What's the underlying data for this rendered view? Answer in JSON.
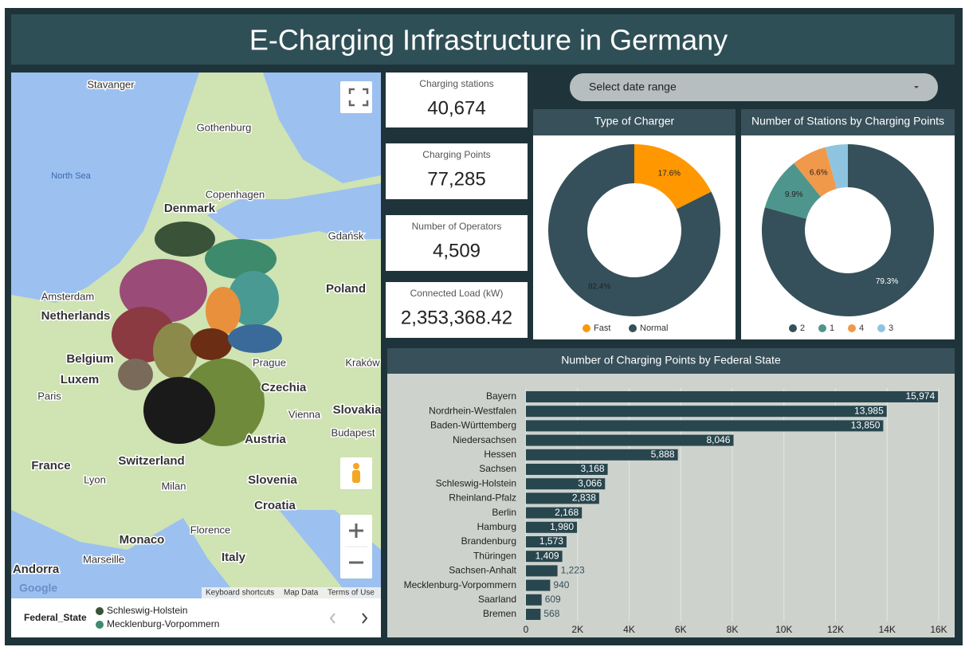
{
  "header": {
    "title": "E-Charging Infrastructure in Germany"
  },
  "kpis": [
    {
      "label": "Charging stations",
      "value": "40,674"
    },
    {
      "label": "Charging Points",
      "value": "77,285"
    },
    {
      "label": "Number of Operators",
      "value": "4,509"
    },
    {
      "label": "Connected Load (kW)",
      "value": "2,353,368.42"
    }
  ],
  "date_picker": {
    "label": "Select date range"
  },
  "map": {
    "labels": [
      "Stavanger",
      "Gothenburg",
      "North Sea",
      "Copenhagen",
      "Denmark",
      "Gdańsk",
      "Amsterdam",
      "Netherlands",
      "Poland",
      "Belgium",
      "Luxem",
      "Paris",
      "Prague",
      "Czechia",
      "Kraków",
      "Vienna",
      "Slovakia",
      "Budapest",
      "Austria",
      "France",
      "Switzerland",
      "Lyon",
      "Milan",
      "Slovenia",
      "Croatia",
      "Florence",
      "Monaco",
      "Italy",
      "Marseille",
      "Andorra"
    ],
    "attribution": [
      "Google",
      "Keyboard shortcuts",
      "Map Data",
      "Terms of Use"
    ],
    "legend_title": "Federal_State",
    "legend_items": [
      {
        "name": "Schleswig-Holstein",
        "color": "#3a5238"
      },
      {
        "name": "Mecklenburg-Vorpommern",
        "color": "#3e8a6c"
      }
    ]
  },
  "chart_data": [
    {
      "type": "donut",
      "title": "Type of Charger",
      "categories": [
        "Fast",
        "Normal"
      ],
      "values": [
        17.6,
        82.4
      ],
      "value_labels": [
        "17.6%",
        "82.4%"
      ],
      "colors": [
        "#ff9800",
        "#35505a"
      ]
    },
    {
      "type": "donut",
      "title": "Number of Stations by Charging Points",
      "categories": [
        "2",
        "1",
        "4",
        "3"
      ],
      "values": [
        79.3,
        9.9,
        6.6,
        4.2
      ],
      "value_labels": [
        "79.3%",
        "9.9%",
        "6.6%",
        null
      ],
      "colors": [
        "#35505a",
        "#4e968d",
        "#f0994a",
        "#8ec4e0"
      ]
    },
    {
      "type": "bar",
      "orientation": "horizontal",
      "title": "Number of Charging Points by Federal State",
      "categories": [
        "Bayern",
        "Nordrhein-Westfalen",
        "Baden-Württemberg",
        "Niedersachsen",
        "Hessen",
        "Sachsen",
        "Schleswig-Holstein",
        "Rheinland-Pfalz",
        "Berlin",
        "Hamburg",
        "Brandenburg",
        "Thüringen",
        "Sachsen-Anhalt",
        "Mecklenburg-Vorpommern",
        "Saarland",
        "Bremen"
      ],
      "values": [
        15974,
        13985,
        13850,
        8046,
        5888,
        3168,
        3066,
        2838,
        2168,
        1980,
        1573,
        1409,
        1223,
        940,
        609,
        568
      ],
      "value_labels": [
        "15,974",
        "13,985",
        "13,850",
        "8,046",
        "5,888",
        "3,168",
        "3,066",
        "2,838",
        "2,168",
        "1,980",
        "1,573",
        "1,409",
        "1,223",
        "940",
        "609",
        "568"
      ],
      "color": "#28464e",
      "xlim": [
        0,
        16000
      ],
      "xticks": [
        0,
        {
          "value": 2000,
          "label": "2K"
        },
        {
          "value": 4000,
          "label": "4K"
        },
        {
          "value": 6000,
          "label": "6K"
        },
        {
          "value": 8000,
          "label": "8K"
        },
        {
          "value": 10000,
          "label": "10K"
        },
        {
          "value": 12000,
          "label": "12K"
        },
        {
          "value": 14000,
          "label": "14K"
        },
        {
          "value": 16000,
          "label": "16K"
        }
      ],
      "grid": true
    }
  ]
}
